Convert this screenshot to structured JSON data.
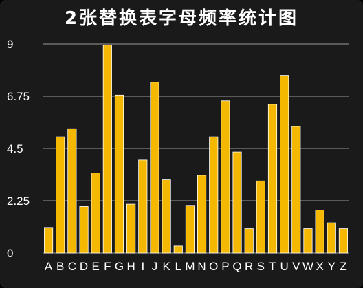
{
  "chart_data": {
    "type": "bar",
    "title": "2张替换表字母频率统计图",
    "categories": [
      "A",
      "B",
      "C",
      "D",
      "E",
      "F",
      "G",
      "H",
      "I",
      "J",
      "K",
      "L",
      "M",
      "N",
      "O",
      "P",
      "Q",
      "R",
      "S",
      "T",
      "U",
      "V",
      "W",
      "X",
      "Y",
      "Z"
    ],
    "values": [
      1.1,
      5.0,
      5.35,
      2.0,
      3.45,
      8.95,
      6.8,
      2.1,
      4.0,
      7.35,
      3.15,
      0.3,
      2.05,
      3.35,
      5.0,
      6.55,
      4.35,
      1.05,
      3.1,
      6.4,
      7.65,
      5.45,
      1.05,
      1.85,
      1.3,
      1.05
    ],
    "ylim": [
      0,
      9
    ],
    "yticks": [
      "0",
      "2.25",
      "4.5",
      "6.75",
      "9"
    ],
    "ytick_values": [
      0,
      2.25,
      4.5,
      6.75,
      9
    ],
    "xlabel": "",
    "ylabel": "",
    "grid": true,
    "colors": {
      "bar": "#f5b800",
      "bar_edge": "#ffffff",
      "grid": "#9a9a9a",
      "text": "#ffffff",
      "background": "#1a1a1a"
    }
  }
}
